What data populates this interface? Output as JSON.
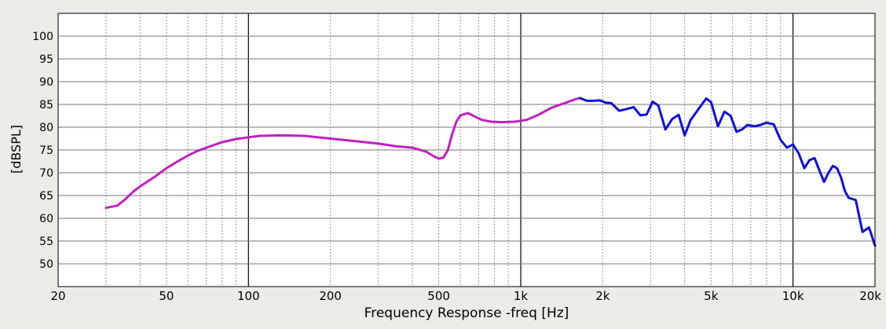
{
  "chart_data": {
    "type": "line",
    "xlabel": "Frequency Response -freq [Hz]",
    "ylabel": "[dBSPL]",
    "x_scale": "log",
    "xlim": [
      20,
      20000
    ],
    "ylim": [
      45,
      105
    ],
    "x_ticks": [
      20,
      50,
      100,
      200,
      500,
      1000,
      2000,
      5000,
      10000,
      20000
    ],
    "x_tick_labels": [
      "20",
      "50",
      "100",
      "200",
      "500",
      "1k",
      "2k",
      "5k",
      "10k",
      "20k"
    ],
    "y_ticks": [
      50,
      55,
      60,
      65,
      70,
      75,
      80,
      85,
      90,
      95,
      100
    ],
    "grid": true,
    "legend": "none",
    "series": [
      {
        "color": "#c020c0",
        "x": [
          30,
          33,
          35,
          38,
          40,
          45,
          50,
          55,
          60,
          65,
          70,
          80,
          90,
          100,
          110,
          130,
          160,
          200,
          250,
          300,
          350,
          400,
          450,
          480,
          500,
          520,
          540,
          560,
          580,
          600,
          640,
          680,
          720,
          780,
          850,
          950,
          1050,
          1150,
          1300,
          1450,
          1600,
          1650
        ],
        "values": [
          62.3,
          62.8,
          64,
          66,
          67,
          69,
          71,
          72.5,
          73.8,
          74.8,
          75.5,
          76.7,
          77.4,
          77.8,
          78.1,
          78.2,
          78.1,
          77.5,
          76.9,
          76.4,
          75.8,
          75.5,
          74.6,
          73.6,
          73.1,
          73.3,
          75,
          78.5,
          81.2,
          82.6,
          83.1,
          82.3,
          81.6,
          81.2,
          81.1,
          81.2,
          81.6,
          82.6,
          84.3,
          85.3,
          86.2,
          86.4
        ]
      },
      {
        "color": "#1010d8",
        "x": [
          1650,
          1750,
          1850,
          1950,
          2050,
          2150,
          2300,
          2450,
          2600,
          2750,
          2900,
          3050,
          3200,
          3400,
          3600,
          3800,
          4000,
          4200,
          4500,
          4800,
          5000,
          5300,
          5600,
          5900,
          6200,
          6500,
          6800,
          7200,
          7600,
          8000,
          8500,
          9000,
          9500,
          10000,
          10500,
          11000,
          11500,
          12000,
          12500,
          13000,
          13500,
          14000,
          14500,
          15000,
          15500,
          16000,
          17000,
          18000,
          19000,
          20000
        ],
        "values": [
          86.4,
          85.8,
          85.8,
          85.9,
          85.4,
          85.3,
          83.6,
          84,
          84.4,
          82.6,
          82.8,
          85.6,
          84.8,
          79.5,
          81.8,
          82.7,
          78.2,
          81.5,
          84,
          86.3,
          85.5,
          80.2,
          83.4,
          82.5,
          79,
          79.5,
          80.5,
          80.2,
          80.5,
          81,
          80.6,
          77.2,
          75.5,
          76.2,
          74.2,
          71,
          72.8,
          73.2,
          70.5,
          68,
          70,
          71.5,
          71,
          69,
          66,
          64.5,
          64,
          57,
          58,
          54
        ]
      }
    ]
  }
}
